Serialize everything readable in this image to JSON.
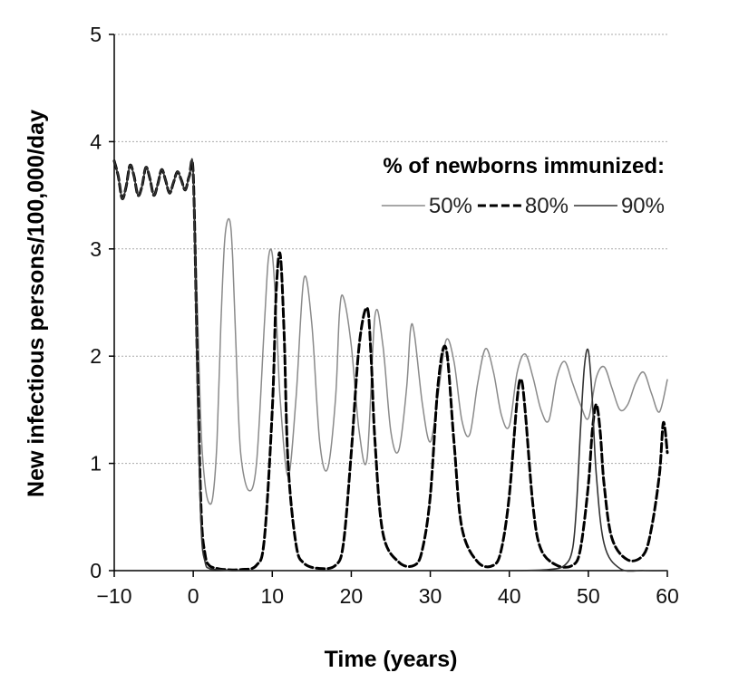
{
  "chart_data": {
    "type": "line",
    "xlabel": "Time (years)",
    "ylabel": "New infectious persons/100,000/day",
    "xlim": [
      -10,
      60
    ],
    "ylim": [
      0,
      5
    ],
    "xticks": [
      "−10",
      "0",
      "10",
      "20",
      "30",
      "40",
      "50",
      "60"
    ],
    "yticks": [
      "0",
      "1",
      "2",
      "3",
      "4",
      "5"
    ],
    "grid": "horizontal dotted",
    "legend": {
      "title": "% of newborns immunized:",
      "placement": "top-right"
    },
    "series": [
      {
        "name": "50%",
        "style": "thin-gray",
        "x": [
          -10,
          -9.5,
          -9,
          -8.5,
          -8,
          -7.5,
          -7,
          -6.5,
          -6,
          -5.5,
          -5,
          -4.5,
          -4,
          -3.5,
          -3,
          -2.5,
          -2,
          -1.5,
          -1,
          -0.5,
          0,
          0.5,
          1,
          1.5,
          2,
          2.5,
          3,
          3.5,
          4,
          4.6,
          5,
          5.5,
          6,
          7,
          8,
          9,
          9.5,
          10,
          10.5,
          11,
          12,
          13,
          14,
          15,
          16,
          17,
          18,
          18.5,
          19,
          20,
          21,
          22,
          23,
          24,
          25,
          26,
          27,
          27.5,
          28,
          29,
          30,
          31,
          32,
          33,
          34,
          35,
          36,
          37,
          38,
          39,
          40,
          41,
          42,
          43,
          44,
          45,
          46,
          47,
          48,
          49,
          50,
          51,
          52,
          53,
          54,
          55,
          56,
          57,
          58,
          59,
          60
        ],
        "y": [
          3.82,
          3.68,
          3.47,
          3.58,
          3.78,
          3.68,
          3.5,
          3.58,
          3.76,
          3.66,
          3.5,
          3.6,
          3.74,
          3.64,
          3.52,
          3.62,
          3.72,
          3.64,
          3.55,
          3.68,
          3.7,
          2.5,
          1.3,
          0.8,
          0.63,
          0.7,
          1.2,
          2.3,
          3.1,
          3.27,
          2.9,
          1.9,
          1.1,
          0.75,
          1.0,
          2.3,
          2.9,
          2.95,
          2.4,
          1.6,
          0.88,
          1.6,
          2.72,
          2.3,
          1.2,
          0.95,
          1.6,
          2.4,
          2.55,
          2.1,
          1.3,
          1.05,
          2.38,
          2.1,
          1.3,
          1.12,
          1.7,
          2.25,
          2.2,
          1.55,
          1.2,
          1.65,
          2.15,
          1.95,
          1.4,
          1.27,
          1.75,
          2.07,
          1.85,
          1.45,
          1.35,
          1.85,
          2.02,
          1.8,
          1.5,
          1.4,
          1.8,
          1.95,
          1.75,
          1.55,
          1.42,
          1.8,
          1.9,
          1.7,
          1.5,
          1.55,
          1.75,
          1.85,
          1.65,
          1.48,
          1.78
        ]
      },
      {
        "name": "80%",
        "style": "dashed-black",
        "x": [
          -10,
          -9.5,
          -9,
          -8.5,
          -8,
          -7.5,
          -7,
          -6.5,
          -6,
          -5.5,
          -5,
          -4.5,
          -4,
          -3.5,
          -3,
          -2.5,
          -2,
          -1.5,
          -1,
          -0.5,
          0,
          0.5,
          1,
          1.5,
          2,
          3,
          4,
          6,
          8,
          9,
          10,
          10.5,
          11,
          11.5,
          12,
          13,
          14,
          16,
          18,
          19,
          20,
          21,
          22,
          22.5,
          23,
          24,
          26,
          28,
          29,
          30,
          31,
          32,
          33,
          34,
          36,
          38,
          39,
          40,
          41,
          41.5,
          42,
          43,
          44,
          46,
          48,
          49,
          50,
          50.5,
          51,
          51.5,
          52,
          53,
          55,
          57,
          58,
          59,
          59.5,
          60
        ],
        "y": [
          3.82,
          3.68,
          3.47,
          3.58,
          3.78,
          3.68,
          3.5,
          3.58,
          3.76,
          3.66,
          3.5,
          3.6,
          3.74,
          3.64,
          3.52,
          3.62,
          3.72,
          3.64,
          3.55,
          3.68,
          3.7,
          2.0,
          0.55,
          0.15,
          0.05,
          0.02,
          0.01,
          0.01,
          0.05,
          0.3,
          1.5,
          2.6,
          2.95,
          2.2,
          1.0,
          0.25,
          0.07,
          0.02,
          0.05,
          0.25,
          1.1,
          2.1,
          2.45,
          2.0,
          1.2,
          0.35,
          0.08,
          0.05,
          0.2,
          0.7,
          1.75,
          2.07,
          1.2,
          0.4,
          0.08,
          0.05,
          0.2,
          0.7,
          1.6,
          1.78,
          1.5,
          0.6,
          0.2,
          0.05,
          0.05,
          0.2,
          0.8,
          1.3,
          1.55,
          1.3,
          0.8,
          0.3,
          0.1,
          0.15,
          0.4,
          0.9,
          1.38,
          1.1
        ]
      },
      {
        "name": "90%",
        "style": "thin-dark",
        "x": [
          -10,
          -9.5,
          -9,
          -8.5,
          -8,
          -7.5,
          -7,
          -6.5,
          -6,
          -5.5,
          -5,
          -4.5,
          -4,
          -3.5,
          -3,
          -2.5,
          -2,
          -1.5,
          -1,
          -0.5,
          0,
          0.5,
          1,
          1.5,
          2,
          3,
          5,
          10,
          20,
          30,
          40,
          45,
          47,
          48,
          48.5,
          49,
          49.5,
          50,
          50.5,
          51,
          52,
          54,
          57,
          60
        ],
        "y": [
          3.82,
          3.68,
          3.47,
          3.58,
          3.78,
          3.68,
          3.5,
          3.58,
          3.76,
          3.66,
          3.5,
          3.6,
          3.74,
          3.64,
          3.52,
          3.62,
          3.72,
          3.64,
          3.55,
          3.68,
          3.7,
          1.8,
          0.4,
          0.08,
          0.02,
          0.01,
          0.0,
          0.0,
          0.0,
          0.0,
          0.0,
          0.01,
          0.05,
          0.2,
          0.6,
          1.3,
          1.9,
          2.05,
          1.6,
          0.9,
          0.25,
          0.02,
          0.0,
          0.0
        ]
      }
    ]
  }
}
